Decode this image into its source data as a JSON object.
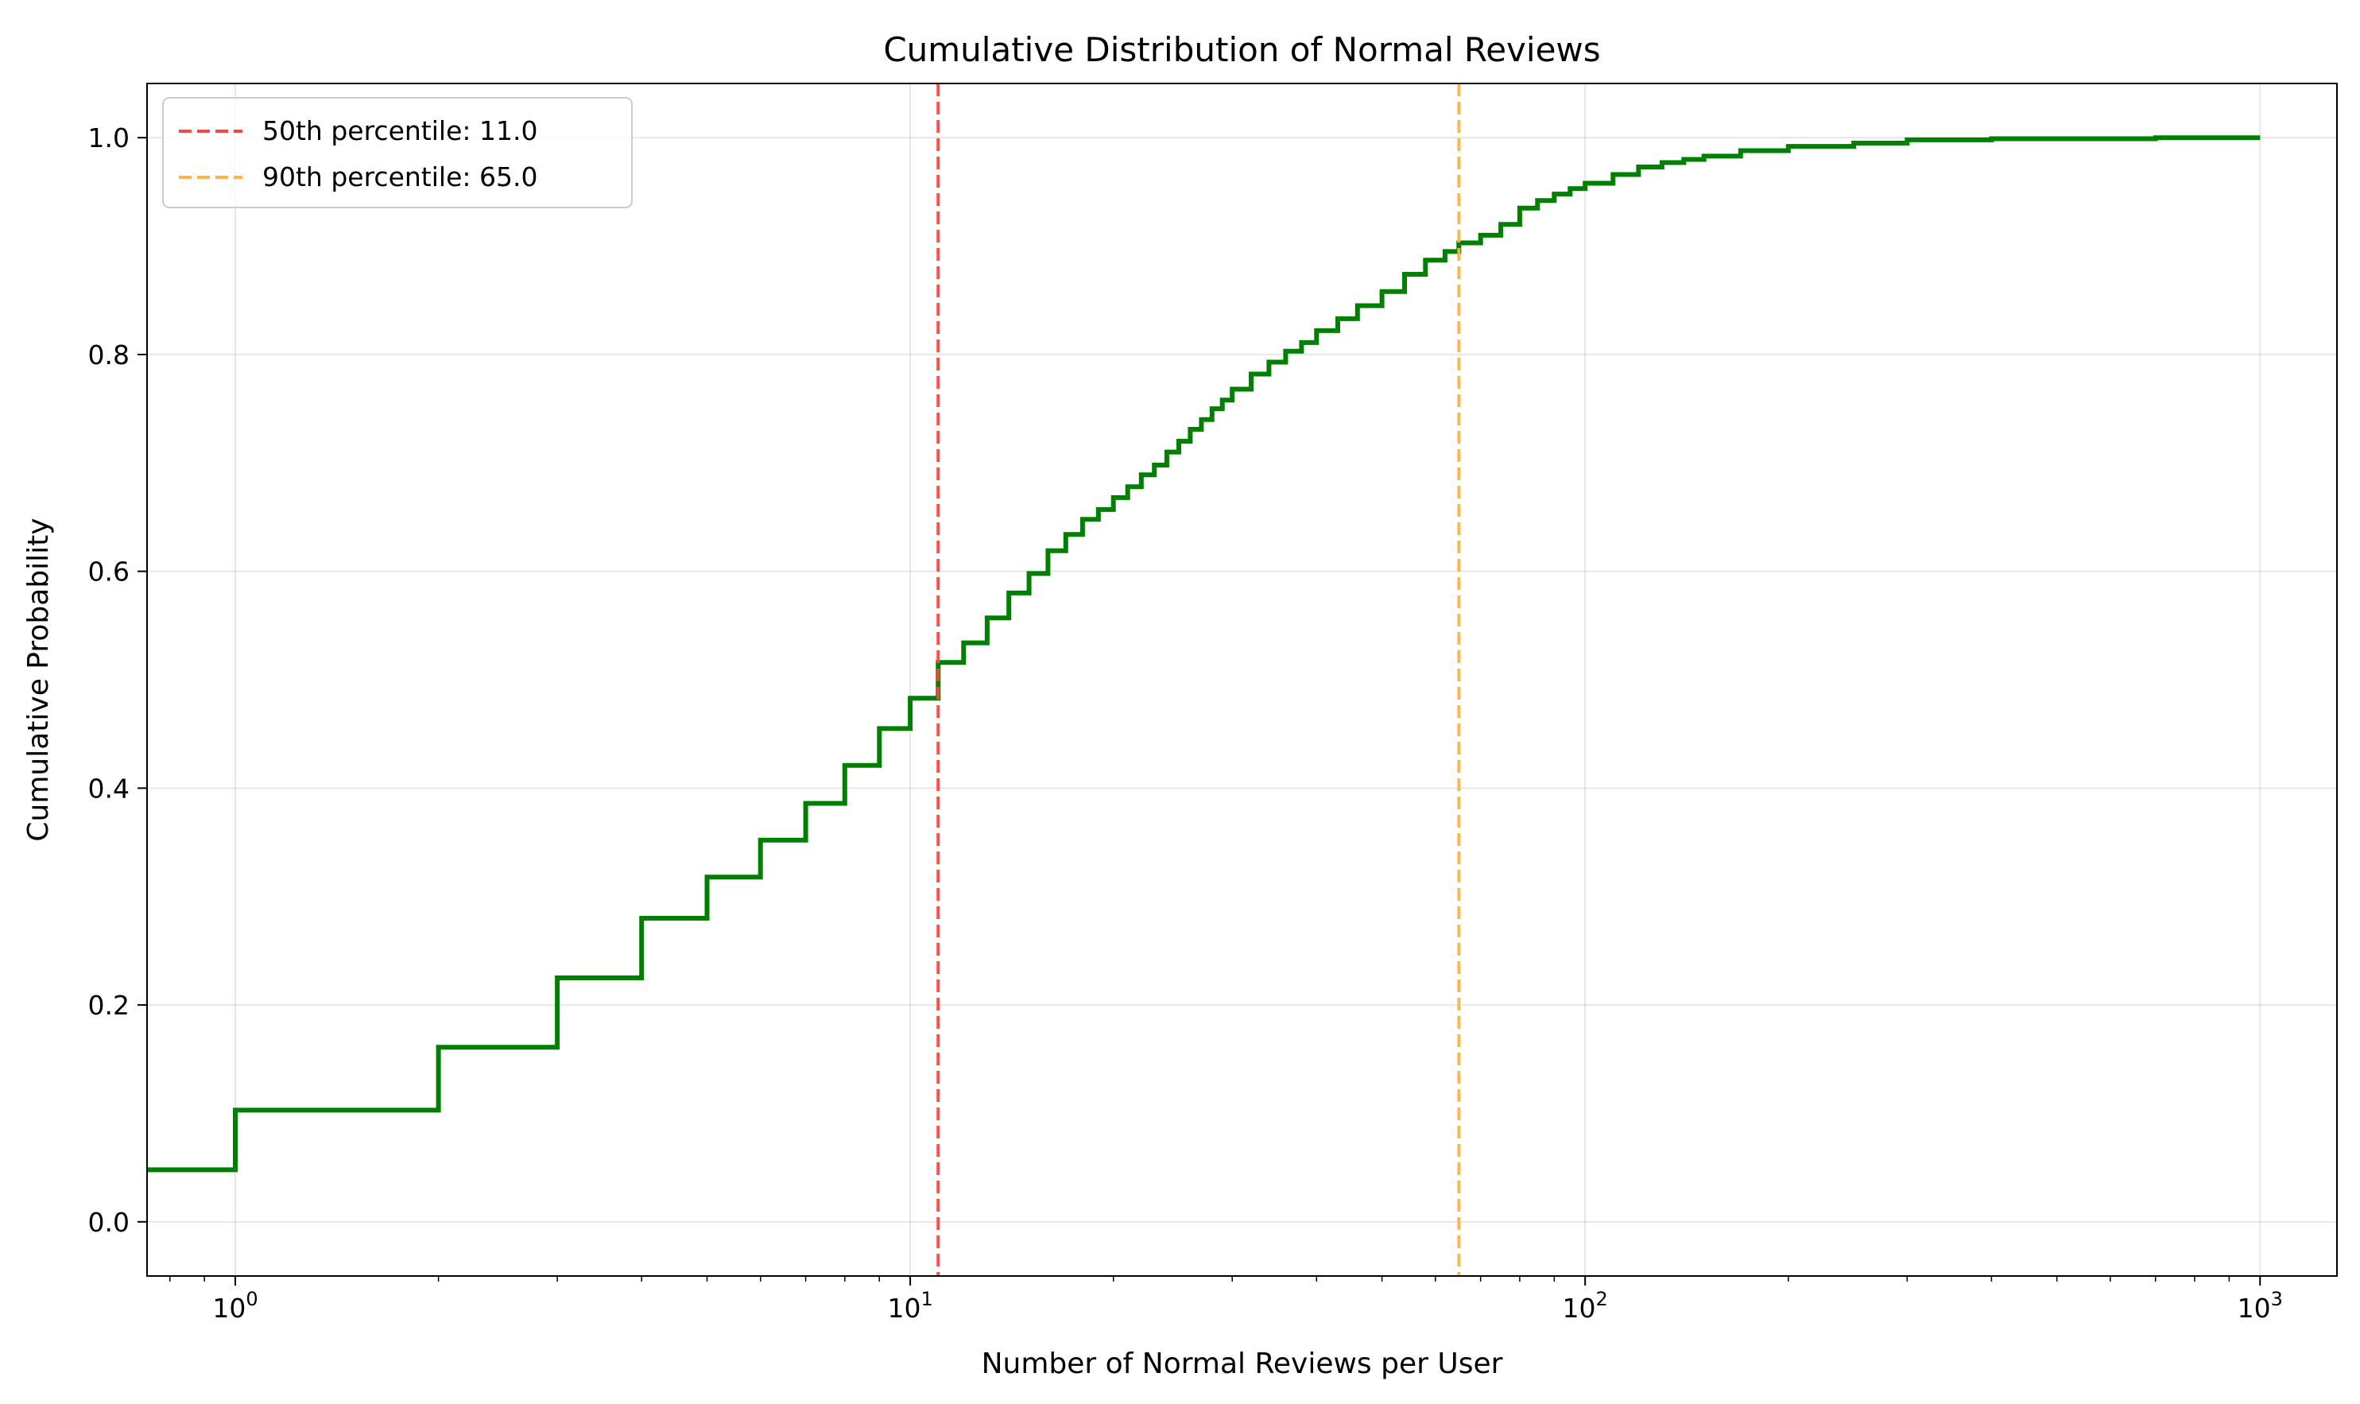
{
  "chart_data": {
    "type": "line",
    "drawstyle": "steps-post",
    "title": "Cumulative Distribution of Normal Reviews",
    "xlabel": "Number of Normal Reviews per User",
    "ylabel": "Cumulative Probability",
    "xscale": "log",
    "xlim": [
      0.74,
      1300
    ],
    "ylim": [
      -0.05,
      1.05
    ],
    "grid": true,
    "legend_position": "top-left",
    "x_ticks": [
      {
        "value": 1,
        "base": "10",
        "exp": "0"
      },
      {
        "value": 10,
        "base": "10",
        "exp": "1"
      },
      {
        "value": 100,
        "base": "10",
        "exp": "2"
      },
      {
        "value": 1000,
        "base": "10",
        "exp": "3"
      }
    ],
    "y_ticks": [
      {
        "value": 0.0,
        "label": "0.0"
      },
      {
        "value": 0.2,
        "label": "0.2"
      },
      {
        "value": 0.4,
        "label": "0.4"
      },
      {
        "value": 0.6,
        "label": "0.6"
      },
      {
        "value": 0.8,
        "label": "0.8"
      },
      {
        "value": 1.0,
        "label": "1.0"
      }
    ],
    "series": [
      {
        "name": "",
        "color": "#008000",
        "x": [
          0.74,
          1,
          2,
          3,
          4,
          5,
          6,
          7,
          8,
          9,
          10,
          11,
          12,
          13,
          14,
          15,
          16,
          17,
          18,
          19,
          20,
          21,
          22,
          23,
          24,
          25,
          26,
          27,
          28,
          29,
          30,
          32,
          34,
          36,
          38,
          40,
          43,
          46,
          50,
          54,
          58,
          62,
          65,
          70,
          75,
          80,
          85,
          90,
          95,
          100,
          110,
          120,
          130,
          140,
          150,
          170,
          200,
          250,
          300,
          400,
          500,
          700,
          1000
        ],
        "y": [
          0.048,
          0.103,
          0.161,
          0.225,
          0.28,
          0.318,
          0.352,
          0.386,
          0.421,
          0.455,
          0.483,
          0.516,
          0.534,
          0.557,
          0.58,
          0.598,
          0.619,
          0.634,
          0.648,
          0.657,
          0.668,
          0.678,
          0.689,
          0.698,
          0.71,
          0.72,
          0.731,
          0.74,
          0.75,
          0.758,
          0.768,
          0.782,
          0.793,
          0.803,
          0.811,
          0.822,
          0.833,
          0.845,
          0.858,
          0.874,
          0.887,
          0.895,
          0.903,
          0.91,
          0.92,
          0.935,
          0.942,
          0.948,
          0.953,
          0.958,
          0.966,
          0.973,
          0.977,
          0.98,
          0.983,
          0.988,
          0.992,
          0.995,
          0.998,
          0.999,
          0.999,
          1.0,
          1.0
        ]
      }
    ],
    "vlines": [
      {
        "name": "50th percentile: 11.0",
        "x": 11.0,
        "color": "#ff4444"
      },
      {
        "name": "90th percentile: 65.0",
        "x": 65.0,
        "color": "#ffb347"
      }
    ]
  }
}
